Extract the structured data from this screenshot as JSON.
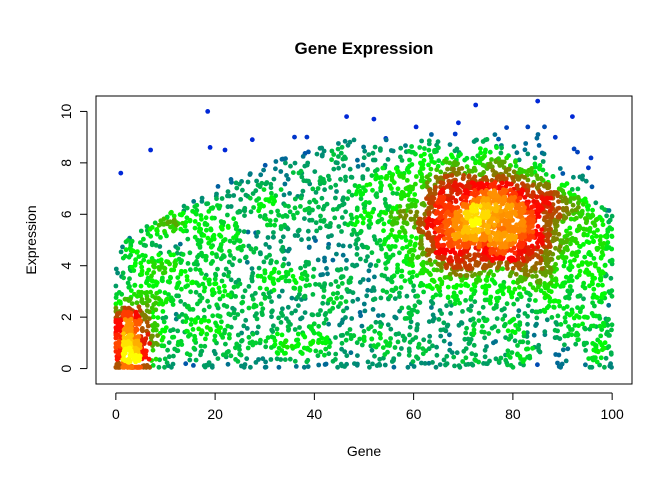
{
  "chart_data": {
    "type": "scatter",
    "title": "Gene Expression",
    "xlabel": "Gene",
    "ylabel": "Expression",
    "xlim": [
      -4,
      104
    ],
    "ylim": [
      -0.6,
      10.6
    ],
    "xticks": [
      0,
      20,
      40,
      60,
      80,
      100
    ],
    "yticks": [
      0,
      2,
      4,
      6,
      8,
      10
    ],
    "grid": false,
    "legend": "none",
    "color_ramp": [
      "#0000ff",
      "#00ff00",
      "#ff0000",
      "#ffff00"
    ],
    "point_count": 5000,
    "distribution": {
      "background": {
        "weight": 0.55,
        "x_range": [
          0,
          100
        ],
        "y_range": [
          0,
          9
        ]
      },
      "clusters": [
        {
          "weight": 0.33,
          "x_mean": 75,
          "x_sd": 9,
          "y_mean": 5.8,
          "y_sd": 1.2
        },
        {
          "weight": 0.06,
          "x_mean": 3,
          "x_sd": 1.8,
          "y_mean": 1.0,
          "y_sd": 0.9
        }
      ],
      "outliers": [
        [
          18.5,
          10.0
        ],
        [
          72.5,
          10.25
        ],
        [
          85,
          10.4
        ],
        [
          46.5,
          9.8
        ],
        [
          92,
          9.8
        ],
        [
          52,
          9.7
        ],
        [
          36,
          9.0
        ],
        [
          38.5,
          9.0
        ],
        [
          27.5,
          8.9
        ],
        [
          60.5,
          9.4
        ],
        [
          1,
          7.6
        ],
        [
          7,
          8.5
        ],
        [
          19,
          8.6
        ],
        [
          22,
          8.5
        ],
        [
          83,
          9.4
        ]
      ]
    }
  }
}
